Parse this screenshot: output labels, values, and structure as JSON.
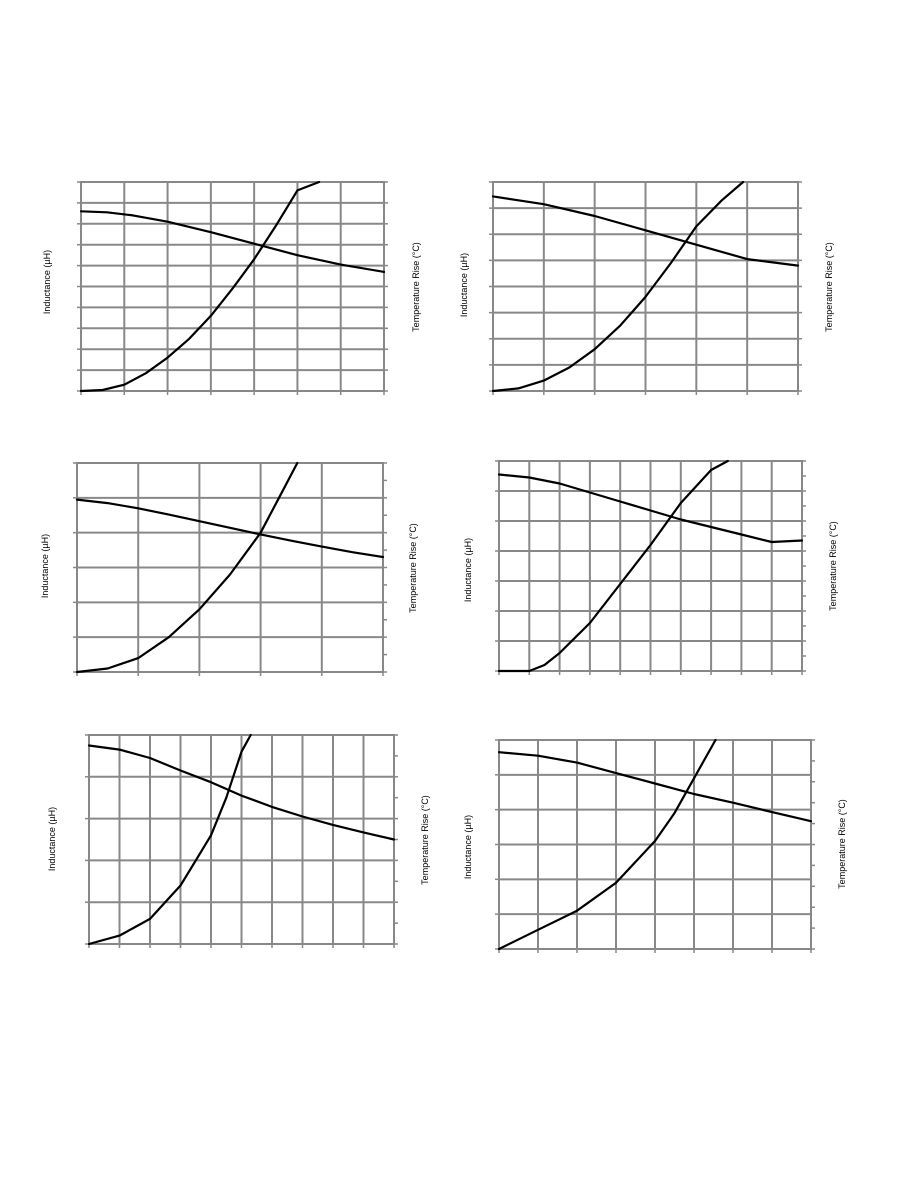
{
  "page": {
    "left_axis_label": "Inductance (µH)",
    "right_axis_label": "Temperature Rise (°C)"
  },
  "style": {
    "curve_color": "#000000",
    "grid_color": "#888888"
  },
  "chart_data": [
    {
      "type": "line",
      "title": "",
      "xlabel": "",
      "ylabel": "Inductance (µH)",
      "y2label": "Temperature Rise (°C)",
      "grid": true,
      "xlim": [
        0,
        7
      ],
      "ylim": [
        0,
        10
      ],
      "y2lim": [
        0,
        10
      ],
      "x_divisions": 7,
      "y_divisions": 10,
      "y2_ticks": 10,
      "series": [
        {
          "axis": "left",
          "x": [
            0,
            0.6,
            1.2,
            2,
            3,
            4,
            5,
            6,
            7
          ],
          "values": [
            8.6,
            8.55,
            8.4,
            8.1,
            7.6,
            7.05,
            6.5,
            6.05,
            5.7
          ]
        },
        {
          "axis": "right",
          "x": [
            0,
            0.5,
            1,
            1.5,
            2,
            2.5,
            3,
            3.5,
            4,
            4.5,
            5,
            5.5
          ],
          "values": [
            0,
            0.05,
            0.3,
            0.85,
            1.6,
            2.5,
            3.6,
            4.9,
            6.3,
            7.9,
            9.6,
            10.0
          ]
        }
      ]
    },
    {
      "type": "line",
      "title": "",
      "xlabel": "",
      "ylabel": "Inductance (µH)",
      "y2label": "Temperature Rise (°C)",
      "grid": true,
      "xlim": [
        0,
        6
      ],
      "ylim": [
        0,
        8
      ],
      "y2lim": [
        0,
        8
      ],
      "x_divisions": 6,
      "y_divisions": 8,
      "y2_ticks": 8,
      "series": [
        {
          "axis": "left",
          "x": [
            0,
            0.5,
            1,
            2,
            3,
            4,
            5,
            6
          ],
          "values": [
            7.45,
            7.3,
            7.15,
            6.7,
            6.15,
            5.6,
            5.05,
            4.8
          ]
        },
        {
          "axis": "right",
          "x": [
            0,
            0.5,
            1,
            1.5,
            2,
            2.5,
            3,
            3.5,
            4,
            4.5,
            4.92
          ],
          "values": [
            0,
            0.1,
            0.4,
            0.9,
            1.6,
            2.5,
            3.6,
            4.9,
            6.3,
            7.3,
            8.0
          ]
        }
      ]
    },
    {
      "type": "line",
      "title": "",
      "xlabel": "",
      "ylabel": "Inductance (µH)",
      "y2label": "Temperature Rise (°C)",
      "grid": true,
      "xlim": [
        0,
        5
      ],
      "ylim": [
        0,
        6
      ],
      "y2lim": [
        0,
        6
      ],
      "x_divisions": 5,
      "y_divisions": 6,
      "y2_ticks": 12,
      "series": [
        {
          "axis": "left",
          "x": [
            0,
            0.5,
            1,
            1.5,
            2,
            2.5,
            3,
            3.5,
            4,
            4.5,
            5
          ],
          "values": [
            4.95,
            4.85,
            4.7,
            4.52,
            4.33,
            4.14,
            3.95,
            3.77,
            3.6,
            3.44,
            3.3
          ]
        },
        {
          "axis": "right",
          "x": [
            0,
            0.5,
            1,
            1.5,
            2,
            2.5,
            3,
            3.3,
            3.6
          ],
          "values": [
            0,
            0.1,
            0.4,
            1.0,
            1.8,
            2.8,
            4.0,
            5.0,
            6.0
          ]
        }
      ]
    },
    {
      "type": "line",
      "title": "",
      "xlabel": "",
      "ylabel": "Inductance (µH)",
      "y2label": "Temperature Rise (°C)",
      "grid": true,
      "xlim": [
        0,
        10
      ],
      "ylim": [
        0,
        7
      ],
      "y2lim": [
        0,
        7
      ],
      "x_divisions": 10,
      "y_divisions": 7,
      "y2_ticks": 14,
      "series": [
        {
          "axis": "left",
          "x": [
            0,
            1,
            2,
            3,
            4,
            5,
            6,
            7,
            8,
            9,
            10
          ],
          "values": [
            6.55,
            6.45,
            6.25,
            5.95,
            5.65,
            5.35,
            5.05,
            4.8,
            4.55,
            4.3,
            4.35
          ]
        },
        {
          "axis": "right",
          "x": [
            0,
            1,
            1.5,
            2,
            3,
            4,
            5,
            6,
            7,
            7.55
          ],
          "values": [
            0,
            0,
            0.2,
            0.6,
            1.6,
            2.9,
            4.2,
            5.6,
            6.7,
            7.0
          ]
        }
      ]
    },
    {
      "type": "line",
      "title": "",
      "xlabel": "",
      "ylabel": "Inductance (µH)",
      "y2label": "Temperature Rise (°C)",
      "grid": true,
      "xlim": [
        0,
        10
      ],
      "ylim": [
        0,
        5
      ],
      "y2lim": [
        0,
        5
      ],
      "x_divisions": 10,
      "y_divisions": 5,
      "y2_ticks": 10,
      "series": [
        {
          "axis": "left",
          "x": [
            0,
            1,
            2,
            3,
            4,
            5,
            6,
            7,
            8,
            9,
            10
          ],
          "values": [
            4.75,
            4.65,
            4.45,
            4.15,
            3.87,
            3.55,
            3.28,
            3.05,
            2.85,
            2.67,
            2.5
          ]
        },
        {
          "axis": "right",
          "x": [
            0,
            1,
            2,
            3,
            3.5,
            4,
            4.5,
            5,
            5.3
          ],
          "values": [
            0,
            0.2,
            0.6,
            1.4,
            2.0,
            2.6,
            3.5,
            4.6,
            5.0
          ]
        }
      ]
    },
    {
      "type": "line",
      "title": "",
      "xlabel": "",
      "ylabel": "Inductance (µH)",
      "y2label": "Temperature Rise (°C)",
      "grid": true,
      "xlim": [
        0,
        8
      ],
      "ylim": [
        0,
        6
      ],
      "y2lim": [
        0,
        6
      ],
      "x_divisions": 8,
      "y_divisions": 6,
      "y2_ticks": 10,
      "series": [
        {
          "axis": "left",
          "x": [
            0,
            1,
            2,
            3,
            4,
            5,
            6,
            7,
            8
          ],
          "values": [
            5.65,
            5.55,
            5.35,
            5.05,
            4.75,
            4.45,
            4.2,
            3.93,
            3.67
          ]
        },
        {
          "axis": "right",
          "x": [
            0,
            1,
            2,
            3,
            4,
            4.5,
            5,
            5.55
          ],
          "values": [
            0,
            0.55,
            1.1,
            1.9,
            3.1,
            3.9,
            4.9,
            6.0
          ]
        }
      ]
    }
  ]
}
